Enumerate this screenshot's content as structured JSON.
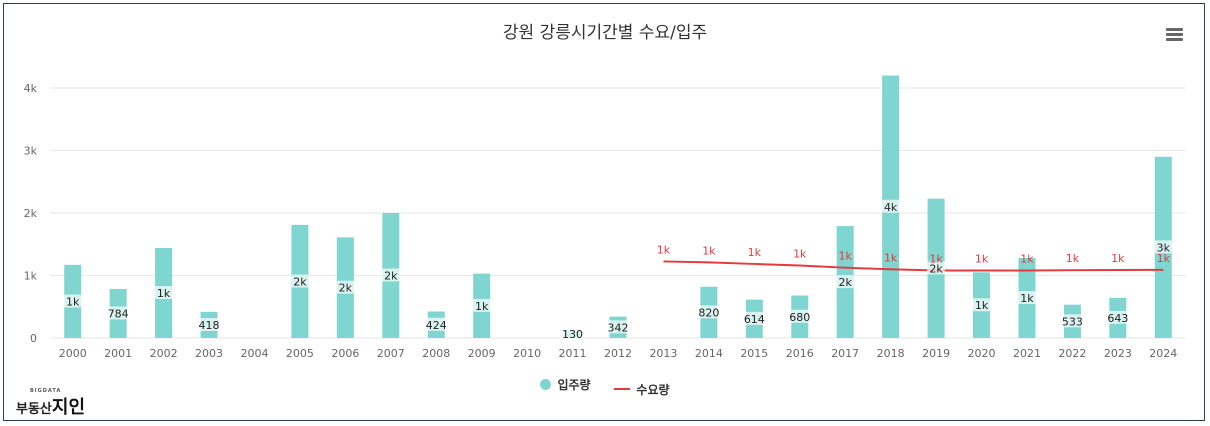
{
  "title": "강원 강릉시기간별 수요/입주",
  "menu_icon": "hamburger-menu-icon",
  "colors": {
    "bar": "#7fd5cf",
    "line": "#e8383d",
    "grid": "#e6e6e6",
    "axis_text": "#666666",
    "bar_label_bg": "#ffffff"
  },
  "legend": {
    "bar_label": "입주량",
    "line_label": "수요량"
  },
  "logo": {
    "small": "BIGDATA",
    "prefix": "부동산",
    "big": "지인"
  },
  "chart_data": {
    "type": "bar",
    "title": "강원 강릉시기간별 수요/입주",
    "xlabel": "",
    "ylabel": "",
    "ylim": [
      0,
      4000
    ],
    "ytick_labels": [
      "0",
      "1k",
      "2k",
      "3k",
      "4k"
    ],
    "ytick_values": [
      0,
      1000,
      2000,
      3000,
      4000
    ],
    "categories": [
      "2000",
      "2001",
      "2002",
      "2003",
      "2004",
      "2005",
      "2006",
      "2007",
      "2008",
      "2009",
      "2010",
      "2011",
      "2012",
      "2013",
      "2014",
      "2015",
      "2016",
      "2017",
      "2018",
      "2019",
      "2020",
      "2021",
      "2022",
      "2023",
      "2024"
    ],
    "grid": true,
    "legend_position": "bottom",
    "series": [
      {
        "name": "입주량",
        "type": "bar",
        "color": "#7fd5cf",
        "values": [
          1170,
          784,
          1440,
          418,
          null,
          1810,
          1610,
          2000,
          424,
          1030,
          null,
          130,
          342,
          null,
          820,
          614,
          680,
          1790,
          4200,
          2230,
          1050,
          1280,
          533,
          643,
          2900
        ],
        "labels": [
          "1k",
          "784",
          "1k",
          "418",
          "",
          "2k",
          "2k",
          "2k",
          "424",
          "1k",
          "",
          "130",
          "342",
          "",
          "820",
          "614",
          "680",
          "2k",
          "4k",
          "2k",
          "1k",
          "1k",
          "533",
          "643",
          "3k"
        ]
      },
      {
        "name": "수요량",
        "type": "line",
        "color": "#e8383d",
        "values": [
          null,
          null,
          null,
          null,
          null,
          null,
          null,
          null,
          null,
          null,
          null,
          null,
          null,
          1225,
          1210,
          1185,
          1160,
          1125,
          1100,
          1080,
          1080,
          1080,
          1085,
          1088,
          1090
        ],
        "labels": [
          "",
          "",
          "",
          "",
          "",
          "",
          "",
          "",
          "",
          "",
          "",
          "",
          "",
          "1k",
          "1k",
          "1k",
          "1k",
          "1k",
          "1k",
          "1k",
          "1k",
          "1k",
          "1k",
          "1k",
          "1k"
        ]
      }
    ]
  }
}
